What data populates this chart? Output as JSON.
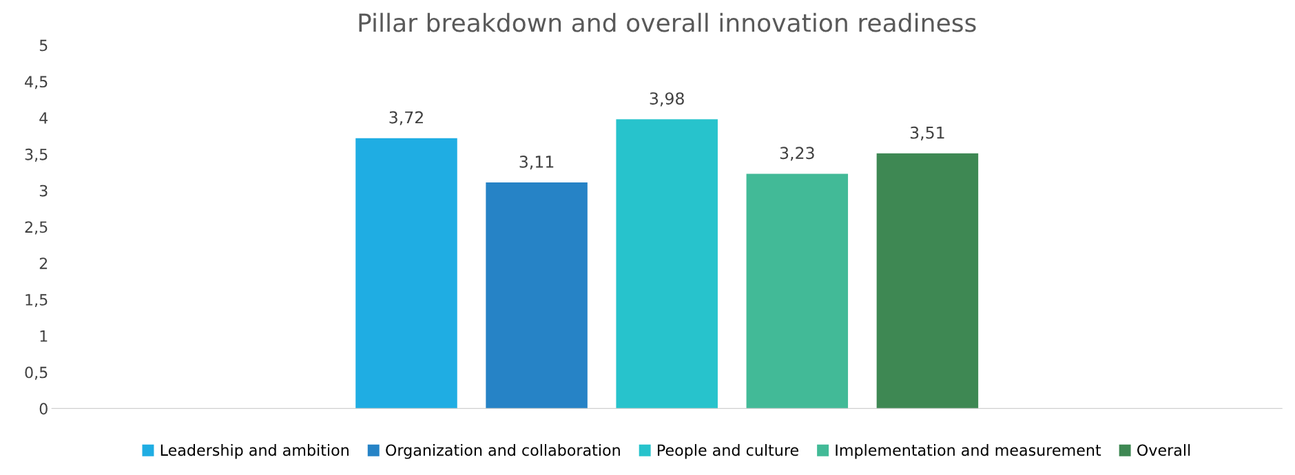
{
  "chart_data": {
    "type": "bar",
    "title": "Pillar breakdown and overall innovation readiness",
    "categories": [
      null
    ],
    "series": [
      {
        "name": "Leadership and ambition",
        "color": "#1fade3",
        "values": [
          3.72
        ],
        "value_labels": [
          "3,72"
        ]
      },
      {
        "name": "Organization and collaboration",
        "color": "#2683c6",
        "values": [
          3.11
        ],
        "value_labels": [
          "3,11"
        ]
      },
      {
        "name": "People and culture",
        "color": "#27c3cc",
        "values": [
          3.98
        ],
        "value_labels": [
          "3,98"
        ]
      },
      {
        "name": "Implementation and measurement",
        "color": "#42ba97",
        "values": [
          3.23
        ],
        "value_labels": [
          "3,23"
        ]
      },
      {
        "name": "Overall",
        "color": "#3e8853",
        "values": [
          3.51
        ],
        "value_labels": [
          "3,51"
        ]
      }
    ],
    "ylim": [
      0,
      5
    ],
    "yticks": [
      0,
      {
        "value": 0.5,
        "label": "0,5"
      },
      1,
      {
        "value": 1.5,
        "label": "1,5"
      },
      2,
      {
        "value": 2.5,
        "label": "2,5"
      },
      3,
      {
        "value": 3.5,
        "label": "3,5"
      },
      4,
      {
        "value": 4.5,
        "label": "4,5"
      },
      5
    ],
    "grid": false,
    "legend": "bottom"
  }
}
